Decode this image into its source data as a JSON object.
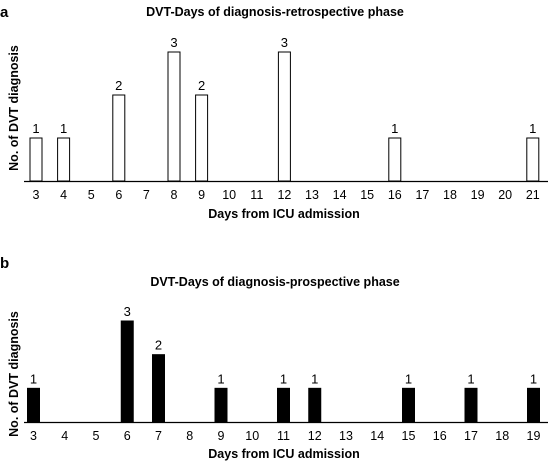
{
  "chart_data": [
    {
      "panel": "a",
      "type": "bar",
      "title": "DVT-Days of diagnosis-retrospective phase",
      "xlabel": "Days from ICU admission",
      "ylabel": "No. of DVT diagnosis",
      "categories": [
        "3",
        "4",
        "5",
        "6",
        "7",
        "8",
        "9",
        "10",
        "11",
        "12",
        "13",
        "14",
        "15",
        "16",
        "17",
        "18",
        "19",
        "20",
        "21"
      ],
      "values": [
        1,
        1,
        0,
        2,
        0,
        3,
        2,
        0,
        0,
        3,
        0,
        0,
        0,
        1,
        0,
        0,
        0,
        0,
        1
      ],
      "ylim": [
        0,
        3
      ],
      "bar_fill": "#ffffff",
      "bar_stroke": "#000000",
      "grid": false,
      "legend": "none"
    },
    {
      "panel": "b",
      "type": "bar",
      "title": "DVT-Days of diagnosis-prospective phase",
      "xlabel": "Days from ICU admission",
      "ylabel": "No. of DVT diagnosis",
      "categories": [
        "3",
        "4",
        "5",
        "6",
        "7",
        "8",
        "9",
        "10",
        "11",
        "12",
        "13",
        "14",
        "15",
        "16",
        "17",
        "18",
        "19"
      ],
      "values": [
        1,
        0,
        0,
        3,
        2,
        0,
        1,
        0,
        1,
        1,
        0,
        0,
        1,
        0,
        1,
        0,
        1
      ],
      "ylim": [
        0,
        3
      ],
      "bar_fill": "#000000",
      "bar_stroke": "#000000",
      "grid": false,
      "legend": "none"
    }
  ]
}
